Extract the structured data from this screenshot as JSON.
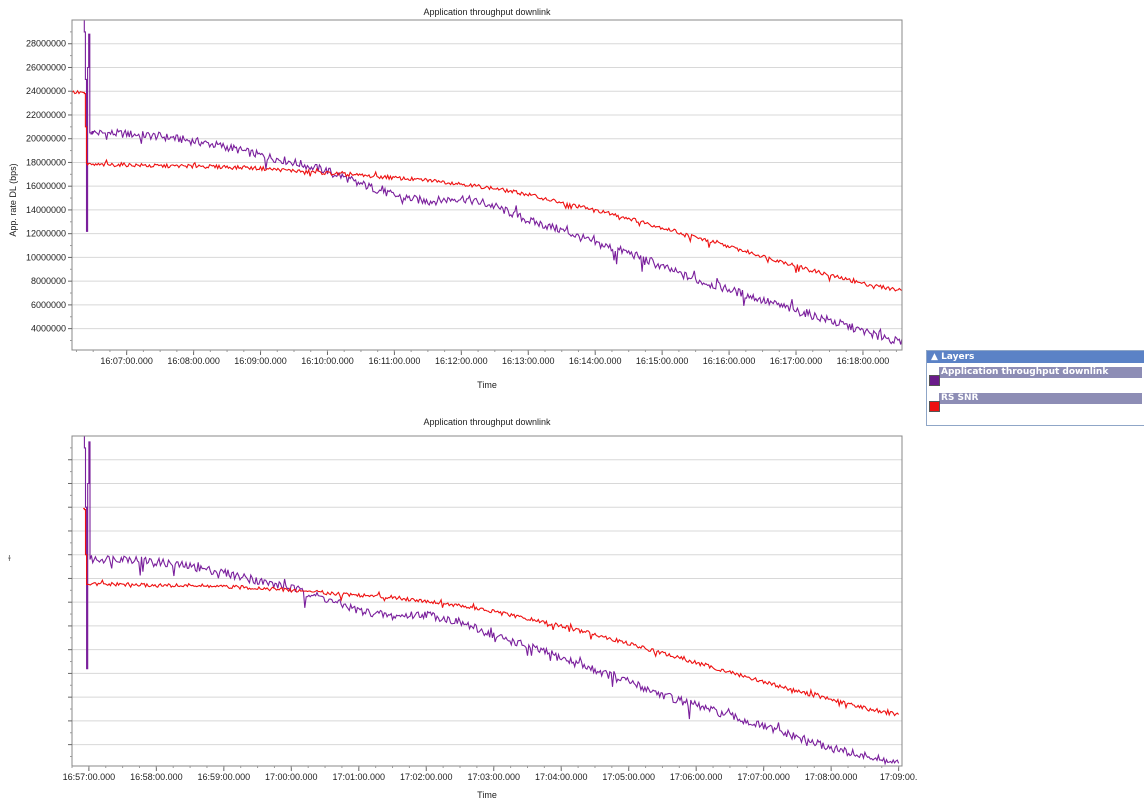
{
  "colors": {
    "purple": "#7a1f9c",
    "red": "#ee1111",
    "grid": "#d8d8d8"
  },
  "layers_panel": {
    "header": "Layers",
    "items": [
      {
        "label": "Application throughput downlink",
        "color": "#6a1b8a"
      },
      {
        "label": "RS SNR",
        "color": "#ee1111"
      }
    ]
  },
  "chart_data": [
    {
      "type": "line",
      "title": "Application throughput downlink",
      "xlabel": "Time",
      "ylabel": "App. rate DL (bps)",
      "x_tick_labels": [
        "16:07:00.000",
        "16:08:00.000",
        "16:09:00.000",
        "16:10:00.000",
        "16:11:00.000",
        "16:12:00.000",
        "16:13:00.000",
        "16:14:00.000",
        "16:15:00.000",
        "16:16:00.000",
        "16:17:00.000",
        "16:18:00.000"
      ],
      "y_tick_labels": [
        "4000000",
        "6000000",
        "8000000",
        "10000000",
        "12000000",
        "14000000",
        "16000000",
        "18000000",
        "20000000",
        "22000000",
        "24000000",
        "26000000",
        "28000000"
      ],
      "xlim": [
        "16:06:11",
        "16:18:35"
      ],
      "ylim": [
        2200000,
        30000000
      ],
      "grid": true,
      "series": [
        {
          "name": "Application throughput downlink",
          "color": "#7a1f9c",
          "x": [
            "16:06:11",
            "16:06:21",
            "16:06:22",
            "16:06:23",
            "16:06:24",
            "16:06:25",
            "16:06:26",
            "16:06:27",
            "16:06:28",
            "16:06:29",
            "16:06:30",
            "16:07:00",
            "16:07:30",
            "16:08:00",
            "16:08:30",
            "16:09:00",
            "16:09:30",
            "16:10:00",
            "16:10:30",
            "16:11:00",
            "16:11:30",
            "16:12:00",
            "16:12:30",
            "16:13:00",
            "16:13:30",
            "16:14:00",
            "16:14:30",
            "16:15:00",
            "16:15:30",
            "16:16:00",
            "16:16:30",
            "16:17:00",
            "16:17:30",
            "16:18:00",
            "16:18:35"
          ],
          "y": [
            null,
            30000000,
            29000000,
            25000000,
            12200000,
            26000000,
            28800000,
            20500000,
            20400000,
            20600000,
            20500000,
            20400000,
            20200000,
            19800000,
            19300000,
            18600000,
            18000000,
            17300000,
            16200000,
            15200000,
            14700000,
            15000000,
            14300000,
            13100000,
            12300000,
            11200000,
            10400000,
            9200000,
            8100000,
            7300000,
            6400000,
            5500000,
            4700000,
            3800000,
            2800000
          ]
        },
        {
          "name": "RS SNR",
          "color": "#ee1111",
          "x": [
            "16:06:11",
            "16:06:21",
            "16:06:22",
            "16:06:23",
            "16:06:24",
            "16:06:25",
            "16:07:00",
            "16:07:30",
            "16:08:00",
            "16:08:30",
            "16:09:00",
            "16:09:30",
            "16:10:00",
            "16:10:30",
            "16:11:00",
            "16:11:30",
            "16:12:00",
            "16:12:30",
            "16:13:00",
            "16:13:30",
            "16:14:00",
            "16:14:30",
            "16:15:00",
            "16:15:30",
            "16:16:00",
            "16:16:30",
            "16:17:00",
            "16:17:30",
            "16:18:00",
            "16:18:35"
          ],
          "y": [
            23900000,
            23900000,
            23800000,
            21000000,
            17900000,
            17800000,
            17800000,
            17700000,
            17700000,
            17600000,
            17500000,
            17300000,
            17100000,
            16900000,
            16700000,
            16500000,
            16200000,
            15800000,
            15300000,
            14600000,
            14000000,
            13300000,
            12500000,
            11700000,
            10900000,
            10100000,
            9300000,
            8500000,
            7800000,
            7200000
          ]
        }
      ]
    },
    {
      "type": "line",
      "title": "Application throughput downlink",
      "xlabel": "Time",
      "x_tick_labels": [
        "16:57:00.000",
        "16:58:00.000",
        "16:59:00.000",
        "17:00:00.000",
        "17:01:00.000",
        "17:02:00.000",
        "17:03:00.000",
        "17:04:00.000",
        "17:05:00.000",
        "17:06:00.000",
        "17:07:00.000",
        "17:08:00.000",
        "17:09:00."
      ],
      "xlim": [
        "16:56:45",
        "17:09:03"
      ],
      "ylim": [
        2200000,
        30000000
      ],
      "grid": true,
      "series": [
        {
          "name": "Application throughput downlink",
          "color": "#7a1f9c",
          "x": [
            "16:56:55",
            "16:56:56",
            "16:56:57",
            "16:56:58",
            "16:56:59",
            "16:57:00",
            "16:57:01",
            "16:57:30",
            "16:58:00",
            "16:58:30",
            "16:59:00",
            "16:59:30",
            "17:00:00",
            "17:00:30",
            "17:01:00",
            "17:01:30",
            "17:02:00",
            "17:02:30",
            "17:03:00",
            "17:03:30",
            "17:04:00",
            "17:04:30",
            "17:05:00",
            "17:05:30",
            "17:06:00",
            "17:06:30",
            "17:07:00",
            "17:07:30",
            "17:08:00",
            "17:08:30",
            "17:09:00"
          ],
          "y": [
            30000000,
            29000000,
            24000000,
            10400000,
            26000000,
            29500000,
            19600000,
            19700000,
            19400000,
            19000000,
            18500000,
            17800000,
            17200000,
            16300000,
            15300000,
            14800000,
            15000000,
            14300000,
            13200000,
            12300000,
            11300000,
            10300000,
            9300000,
            8200000,
            7300000,
            6400000,
            5500000,
            4600000,
            3700000,
            3000000,
            2400000
          ]
        },
        {
          "name": "RS SNR",
          "color": "#ee1111",
          "x": [
            "16:56:45",
            "16:56:55",
            "16:56:56",
            "16:56:57",
            "16:56:58",
            "16:57:00",
            "16:57:30",
            "16:58:00",
            "16:58:30",
            "16:59:00",
            "16:59:30",
            "17:00:00",
            "17:00:30",
            "17:01:00",
            "17:01:30",
            "17:02:00",
            "17:02:30",
            "17:03:00",
            "17:03:30",
            "17:04:00",
            "17:04:30",
            "17:05:00",
            "17:05:30",
            "17:06:00",
            "17:06:30",
            "17:07:00",
            "17:07:30",
            "17:08:00",
            "17:08:30",
            "17:09:00"
          ],
          "y": [
            null,
            23900000,
            23800000,
            20000000,
            17500000,
            17500000,
            17500000,
            17400000,
            17400000,
            17300000,
            17200000,
            17000000,
            16800000,
            16600000,
            16400000,
            16100000,
            15700000,
            15200000,
            14600000,
            14000000,
            13300000,
            12500000,
            11700000,
            10900000,
            10100000,
            9300000,
            8500000,
            7800000,
            7100000,
            6500000
          ]
        }
      ]
    }
  ]
}
